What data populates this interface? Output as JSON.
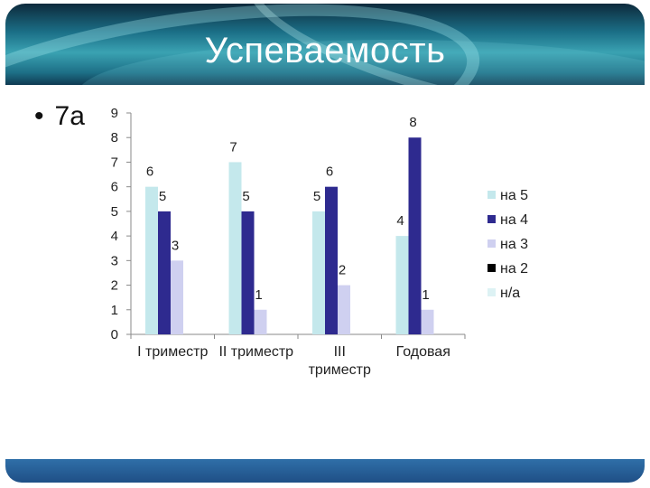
{
  "slide": {
    "title": "Успеваемость",
    "bullet": "7а"
  },
  "colors": {
    "на 5": "#c4e8ec",
    "на 4": "#2e2a8f",
    "на 3": "#cfd0f0",
    "на 2": "#000000",
    "н/а": "#ddf2f4"
  },
  "chart_data": {
    "type": "bar",
    "categories": [
      "I триместр",
      "II триместр",
      "III триместр",
      "Годовая"
    ],
    "series": [
      {
        "name": "на 5",
        "values": [
          6,
          7,
          5,
          4
        ]
      },
      {
        "name": "на 4",
        "values": [
          5,
          5,
          6,
          8
        ]
      },
      {
        "name": "на 3",
        "values": [
          3,
          1,
          2,
          1
        ]
      },
      {
        "name": "на 2",
        "values": [
          0,
          0,
          0,
          0
        ]
      },
      {
        "name": "н/а",
        "values": [
          0,
          0,
          0,
          0
        ]
      }
    ],
    "data_labels": [
      [
        6,
        7,
        5,
        4
      ],
      [
        5,
        5,
        6,
        8
      ],
      [
        3,
        1,
        2,
        1
      ],
      [
        null,
        null,
        null,
        null
      ],
      [
        null,
        null,
        null,
        null
      ]
    ],
    "ylim": [
      0,
      9
    ],
    "yticks": [
      0,
      1,
      2,
      3,
      4,
      5,
      6,
      7,
      8,
      9
    ],
    "grid": false,
    "legend": "right"
  }
}
